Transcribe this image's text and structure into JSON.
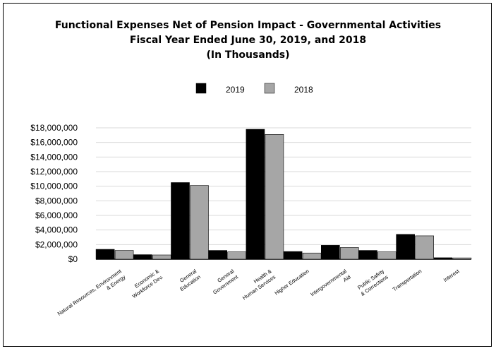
{
  "chart_data": {
    "type": "bar",
    "title": "Functional Expenses Net of Pension Impact - Governmental Activities",
    "subtitle": "Fiscal Year Ended June 30, 2019, and 2018",
    "subtitle2": "(In Thousands)",
    "categories": [
      "Natural Resources, Environment & Energy",
      "Economic & Workforce Dev.",
      "General Education",
      "General Government",
      "Health & Human Services",
      "Higher Education",
      "Intergovernmental Aid",
      "Public Safety & Corrections",
      "Transportation",
      "Interest"
    ],
    "series": [
      {
        "name": "2019",
        "color": "#000000",
        "values": [
          1350000,
          620000,
          10500000,
          1200000,
          17800000,
          1050000,
          1900000,
          1200000,
          3400000,
          200000
        ]
      },
      {
        "name": "2018",
        "color": "#a6a6a6",
        "values": [
          1200000,
          580000,
          10100000,
          1000000,
          17100000,
          850000,
          1600000,
          1000000,
          3200000,
          180000
        ]
      }
    ],
    "ylim": [
      0,
      18000000
    ],
    "yticks": [
      "$0",
      "$2,000,000",
      "$4,000,000",
      "$6,000,000",
      "$8,000,000",
      "$10,000,000",
      "$12,000,000",
      "$14,000,000",
      "$16,000,000",
      "$18,000,000"
    ],
    "ytick_values": [
      0,
      2000000,
      4000000,
      6000000,
      8000000,
      10000000,
      12000000,
      14000000,
      16000000,
      18000000
    ],
    "grid": true,
    "legend_position": "top-center"
  }
}
